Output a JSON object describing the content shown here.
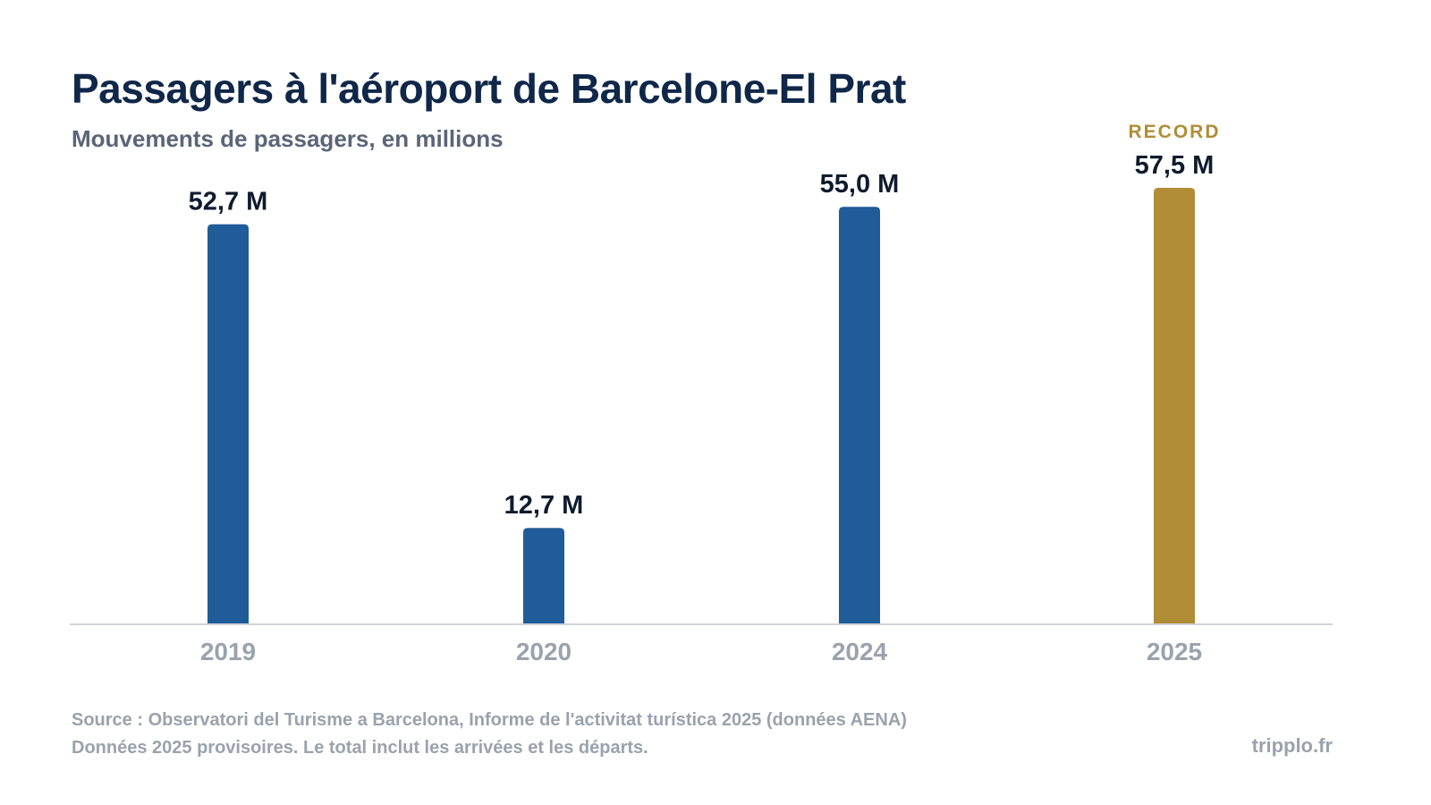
{
  "header": {
    "title": "Passagers à l'aéroport de Barcelone-El Prat",
    "subtitle": "Mouvements de passagers, en millions"
  },
  "chart_data": {
    "type": "bar",
    "categories": [
      "2019",
      "2020",
      "2024",
      "2025"
    ],
    "values": [
      52.7,
      12.7,
      55.0,
      57.5
    ],
    "value_labels": [
      "52,7 M",
      "12,7 M",
      "55,0 M",
      "57,5 M"
    ],
    "annotations": [
      {
        "category": "2025",
        "text": "RECORD"
      }
    ],
    "highlight_category": "2025",
    "ylim": [
      0,
      57.5
    ],
    "grid": false,
    "colors": {
      "default": "#1f5c99",
      "highlight": "#b08d36",
      "axis": "#cfd3d9",
      "label": "#0f1b2d",
      "tick": "#9aa2ad"
    }
  },
  "footer": {
    "source_line1": "Source : Observatori del Turisme a Barcelona, Informe de l'activitat turística 2025 (données AENA)",
    "source_line2": "Données 2025 provisoires. Le total inclut les arrivées et les départs.",
    "brand": "tripplo.fr"
  }
}
